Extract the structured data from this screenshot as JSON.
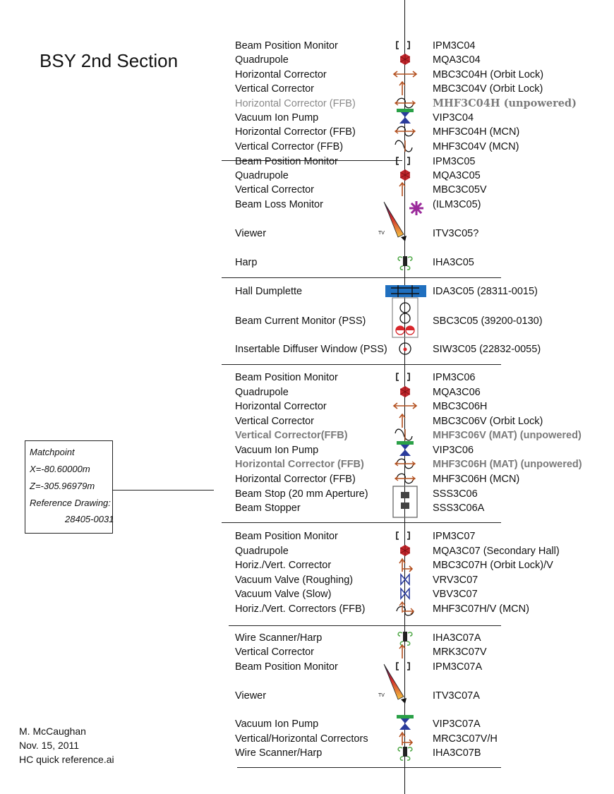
{
  "title": "BSY 2nd Section",
  "rows": [
    {
      "label": "Beam Position Monitor",
      "name": "IPM3C04",
      "style": "normal",
      "icon": "bpm-icon"
    },
    {
      "label": "Quadrupole",
      "name": "MQA3C04",
      "style": "normal",
      "icon": "quadrupole-icon"
    },
    {
      "label": "Horizontal Corrector",
      "name": "MBC3C04H (Orbit Lock)",
      "style": "normal",
      "icon": "horizontal-corrector-icon"
    },
    {
      "label": "Vertical Corrector",
      "name": "MBC3C04V (Orbit Lock)",
      "style": "normal",
      "icon": "vertical-corrector-icon"
    },
    {
      "label": "Horizontal Corrector (FFB)",
      "name": "MHF3C04H (unpowered)",
      "style": "unpowered",
      "icon": "ffb-horizontal-corrector-icon"
    },
    {
      "label": "Vacuum Ion Pump",
      "name": "VIP3C04",
      "style": "normal",
      "icon": "ion-pump-icon"
    },
    {
      "label": "Horizontal Corrector (FFB)",
      "name": "MHF3C04H (MCN)",
      "style": "normal",
      "icon": "ffb-horizontal-corrector-icon"
    },
    {
      "label": "Vertical Corrector (FFB)",
      "name": "MHF3C04V (MCN)",
      "style": "normal",
      "icon": "ffb-vertical-corrector-icon"
    },
    {
      "label": "Beam Position Monitor",
      "name": "IPM3C05",
      "style": "normal",
      "icon": "bpm-icon"
    },
    {
      "label": "Quadrupole",
      "name": "MQA3C05",
      "style": "normal",
      "icon": "quadrupole-icon"
    },
    {
      "label": "Vertical Corrector",
      "name": "MBC3C05V",
      "style": "normal",
      "icon": "vertical-corrector-icon"
    },
    {
      "label": "Beam Loss Monitor",
      "name": "(ILM3C05)",
      "style": "normal",
      "icon": "beam-loss-monitor-icon"
    },
    {
      "label": "Viewer",
      "name": "ITV3C05?",
      "style": "normal",
      "icon": "viewer-icon"
    },
    {
      "label": "Harp",
      "name": "IHA3C05",
      "style": "normal",
      "icon": "harp-icon"
    },
    {
      "label": "Hall Dumplette",
      "name": "IDA3C05 (28311-0015)",
      "style": "normal",
      "icon": "dumplette-icon"
    },
    {
      "label": "Beam Current Monitor (PSS)",
      "name": "SBC3C05 (39200-0130)",
      "style": "normal",
      "icon": "current-monitor-icon"
    },
    {
      "label": "Insertable Diffuser Window (PSS)",
      "name": "SIW3C05 (22832-0055)",
      "style": "normal",
      "icon": "diffuser-window-icon"
    },
    {
      "label": "Beam Position Monitor",
      "name": "IPM3C06",
      "style": "normal",
      "icon": "bpm-icon"
    },
    {
      "label": "Quadrupole",
      "name": "MQA3C06",
      "style": "normal",
      "icon": "quadrupole-icon"
    },
    {
      "label": "Horizontal Corrector",
      "name": "MBC3C06H",
      "style": "normal",
      "icon": "horizontal-corrector-icon"
    },
    {
      "label": "Vertical Corrector",
      "name": "MBC3C06V (Orbit Lock)",
      "style": "normal",
      "icon": "vertical-corrector-icon"
    },
    {
      "label": "Vertical Corrector(FFB)",
      "name": "MHF3C06V (MAT) (unpowered)",
      "style": "unpowered",
      "icon": "ffb-vertical-corrector-icon"
    },
    {
      "label": "Vacuum Ion Pump",
      "name": "VIP3C06",
      "style": "normal",
      "icon": "ion-pump-icon"
    },
    {
      "label": "Horizontal Corrector (FFB)",
      "name": "MHF3C06H (MAT) (unpowered)",
      "style": "unpowered",
      "icon": "ffb-horizontal-corrector-icon"
    },
    {
      "label": "Horizontal Corrector (FFB)",
      "name": "MHF3C06H (MCN)",
      "style": "normal",
      "icon": "ffb-horizontal-corrector-icon"
    },
    {
      "label": "Beam Stop (20 mm Aperture)",
      "name": "SSS3C06",
      "style": "normal",
      "icon": "beam-stop-icon"
    },
    {
      "label": "Beam Stopper",
      "name": "SSS3C06A",
      "style": "normal",
      "icon": "beam-stopper-icon"
    },
    {
      "label": "Beam Position Monitor",
      "name": "IPM3C07",
      "style": "normal",
      "icon": "bpm-icon"
    },
    {
      "label": "Quadrupole",
      "name": "MQA3C07 (Secondary Hall)",
      "style": "normal",
      "icon": "quadrupole-icon"
    },
    {
      "label": "Horiz./Vert. Corrector",
      "name": "MBC3C07H (Orbit Lock)/V",
      "style": "normal",
      "icon": "hv-corrector-icon"
    },
    {
      "label": "Vacuum Valve (Roughing)",
      "name": "VRV3C07",
      "style": "normal",
      "icon": "vacuum-valve-icon"
    },
    {
      "label": "Vacuum Valve (Slow)",
      "name": "VBV3C07",
      "style": "normal",
      "icon": "vacuum-valve-icon"
    },
    {
      "label": "Horiz./Vert. Correctors (FFB)",
      "name": "MHF3C07H/V (MCN)",
      "style": "normal",
      "icon": "ffb-hv-corrector-icon"
    },
    {
      "label": "Wire Scanner/Harp",
      "name": "IHA3C07A",
      "style": "normal",
      "icon": "harp-icon"
    },
    {
      "label": "Vertical Corrector",
      "name": "MRK3C07V",
      "style": "normal",
      "icon": "vertical-corrector-icon"
    },
    {
      "label": "Beam Position Monitor",
      "name": "IPM3C07A",
      "style": "normal",
      "icon": "bpm-icon"
    },
    {
      "label": "Viewer",
      "name": "ITV3C07A",
      "style": "normal",
      "icon": "viewer-icon"
    },
    {
      "label": "Vacuum Ion Pump",
      "name": "VIP3C07A",
      "style": "normal",
      "icon": "ion-pump-icon"
    },
    {
      "label": "Vertical/Horizontal Correctors",
      "name": "MRC3C07V/H",
      "style": "normal",
      "icon": "hv-corrector-icon"
    },
    {
      "label": "Wire Scanner/Harp",
      "name": "IHA3C07B",
      "style": "normal",
      "icon": "harp-icon"
    }
  ],
  "viewer_tv_label": "TV",
  "matchpoint": {
    "line1": "Matchpoint",
    "line2": "X=-80.60000m",
    "line3": "Z=-305.96979m",
    "line4": "Reference Drawing:",
    "line5": "28405-0031"
  },
  "author": {
    "name": "M. McCaughan",
    "date": "Nov. 15, 2011",
    "file": "HC quick reference.ai"
  },
  "colors": {
    "quadrupole": "#c0252b",
    "corrector": "#b4501f",
    "ion_pump_blue": "#2a3b9c",
    "ion_pump_green": "#2aa047",
    "beam_loss_monitor": "#9a2a9a",
    "harp": "#4fa847",
    "dumplette": "#1f6fbf",
    "valve": "#2a3b9c",
    "unpowered_text": "#8a8a8a"
  }
}
